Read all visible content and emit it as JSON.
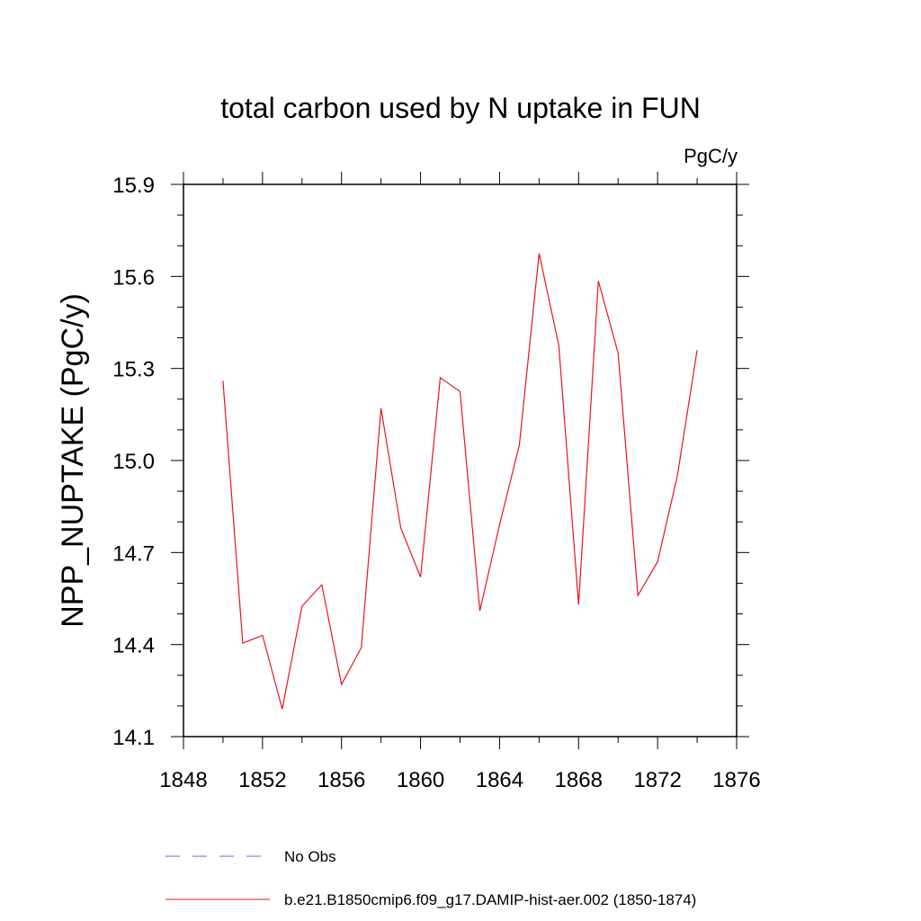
{
  "chart_data": {
    "type": "line",
    "title": "total carbon used by N uptake in FUN",
    "units": "PgC/y",
    "ylabel": "NPP_NUPTAKE  (PgC/y)",
    "xlabel": "",
    "xlim": [
      1848,
      1876
    ],
    "ylim": [
      14.1,
      15.9
    ],
    "x_ticks": [
      1848,
      1852,
      1856,
      1860,
      1864,
      1868,
      1872,
      1876
    ],
    "y_ticks": [
      14.1,
      14.4,
      14.7,
      15.0,
      15.3,
      15.6,
      15.9
    ],
    "y_tick_labels": [
      "14.1",
      "14.4",
      "14.7",
      "15.0",
      "15.3",
      "15.6",
      "15.9"
    ],
    "x_minor_step": 2,
    "y_minor_step": 0.1,
    "grid": false,
    "legend_position": "bottom",
    "series": [
      {
        "name": "b.e21.B1850cmip6.f09_g17.DAMIP-hist-aer.002 (1850-1874)",
        "color": "#e8141e",
        "style": "solid",
        "x": [
          1850,
          1851,
          1852,
          1853,
          1854,
          1855,
          1856,
          1857,
          1858,
          1859,
          1860,
          1861,
          1862,
          1863,
          1864,
          1865,
          1866,
          1867,
          1868,
          1869,
          1870,
          1871,
          1872,
          1873,
          1874
        ],
        "values": [
          15.26,
          14.405,
          14.43,
          14.19,
          14.525,
          14.595,
          14.27,
          14.39,
          15.17,
          14.78,
          14.62,
          15.27,
          15.225,
          14.51,
          14.79,
          15.05,
          15.675,
          15.375,
          14.53,
          15.585,
          15.35,
          14.56,
          14.67,
          14.95,
          15.36
        ]
      }
    ],
    "legend": [
      {
        "label": "No Obs",
        "color": "#6a6ad0",
        "style": "dashed"
      },
      {
        "label": "b.e21.B1850cmip6.f09_g17.DAMIP-hist-aer.002 (1850-1874)",
        "color": "#e8141e",
        "style": "solid"
      }
    ]
  }
}
